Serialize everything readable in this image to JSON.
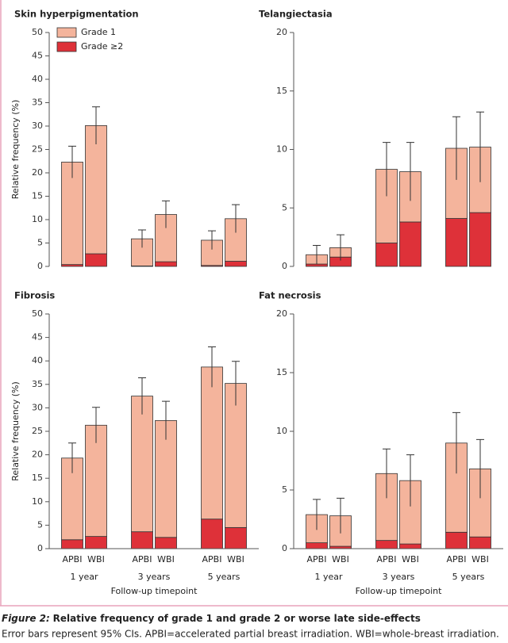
{
  "chart_data": [
    {
      "type": "bar",
      "title": "Skin hyperpigmentation",
      "ylabel": "Relative frequency (%)",
      "ylim": [
        0,
        50
      ],
      "yticks": [
        0,
        5,
        10,
        15,
        20,
        25,
        30,
        35,
        40,
        45,
        50
      ],
      "stacked": true,
      "legend": "upper left",
      "series": [
        {
          "name": "Grade ≥2",
          "color": "#de3139",
          "values": [
            0.4,
            2.7,
            0.1,
            1.0,
            0.2,
            1.1
          ]
        },
        {
          "name": "Grade 1",
          "color": "#f4b49c",
          "values": [
            21.9,
            27.4,
            5.8,
            10.1,
            5.4,
            9.1
          ],
          "errors": [
            3.4,
            4.0,
            1.9,
            2.9,
            2.0,
            3.0
          ]
        }
      ]
    },
    {
      "type": "bar",
      "title": "Telangiectasia",
      "ylim": [
        0,
        20
      ],
      "yticks": [
        0,
        5,
        10,
        15,
        20
      ],
      "stacked": true,
      "series": [
        {
          "color": "#de3139",
          "values": [
            0.2,
            0.8,
            2.0,
            3.8,
            4.1,
            4.6
          ]
        },
        {
          "color": "#f4b49c",
          "values": [
            0.8,
            0.8,
            6.3,
            4.3,
            6.0,
            5.6
          ],
          "errors": [
            0.8,
            1.1,
            2.3,
            2.5,
            2.7,
            3.0
          ]
        }
      ]
    },
    {
      "type": "bar",
      "title": "Fibrosis",
      "ylabel": "Relative frequency (%)",
      "xlabel": "Follow-up timepoint",
      "categories": [
        "APBI",
        "WBI",
        "APBI",
        "WBI",
        "APBI",
        "WBI"
      ],
      "groups": [
        "1 year",
        "3 years",
        "5 years"
      ],
      "ylim": [
        0,
        50
      ],
      "yticks": [
        0,
        5,
        10,
        15,
        20,
        25,
        30,
        35,
        40,
        45,
        50
      ],
      "stacked": true,
      "series": [
        {
          "color": "#de3139",
          "values": [
            1.9,
            2.6,
            3.6,
            2.4,
            6.3,
            4.5
          ]
        },
        {
          "color": "#f4b49c",
          "values": [
            17.4,
            23.7,
            28.9,
            24.9,
            32.4,
            30.7
          ],
          "errors": [
            3.2,
            3.8,
            3.9,
            4.1,
            4.3,
            4.7
          ]
        }
      ]
    },
    {
      "type": "bar",
      "title": "Fat necrosis",
      "xlabel": "Follow-up timepoint",
      "categories": [
        "APBI",
        "WBI",
        "APBI",
        "WBI",
        "APBI",
        "WBI"
      ],
      "groups": [
        "1 year",
        "3 years",
        "5 years"
      ],
      "ylim": [
        0,
        20
      ],
      "yticks": [
        0,
        5,
        10,
        15,
        20
      ],
      "stacked": true,
      "series": [
        {
          "color": "#de3139",
          "values": [
            0.5,
            0.2,
            0.7,
            0.4,
            1.4,
            1.0
          ]
        },
        {
          "color": "#f4b49c",
          "values": [
            2.4,
            2.6,
            5.7,
            5.4,
            7.6,
            5.8
          ],
          "errors": [
            1.3,
            1.5,
            2.1,
            2.2,
            2.6,
            2.5
          ]
        }
      ]
    }
  ],
  "caption": {
    "label": "Figure 2:",
    "title": "Relative frequency of grade 1 and grade 2 or worse late side-effects",
    "note": "Error bars represent 95% CIs. APBI=accelerated partial breast irradiation. WBI=whole-breast irradiation."
  }
}
